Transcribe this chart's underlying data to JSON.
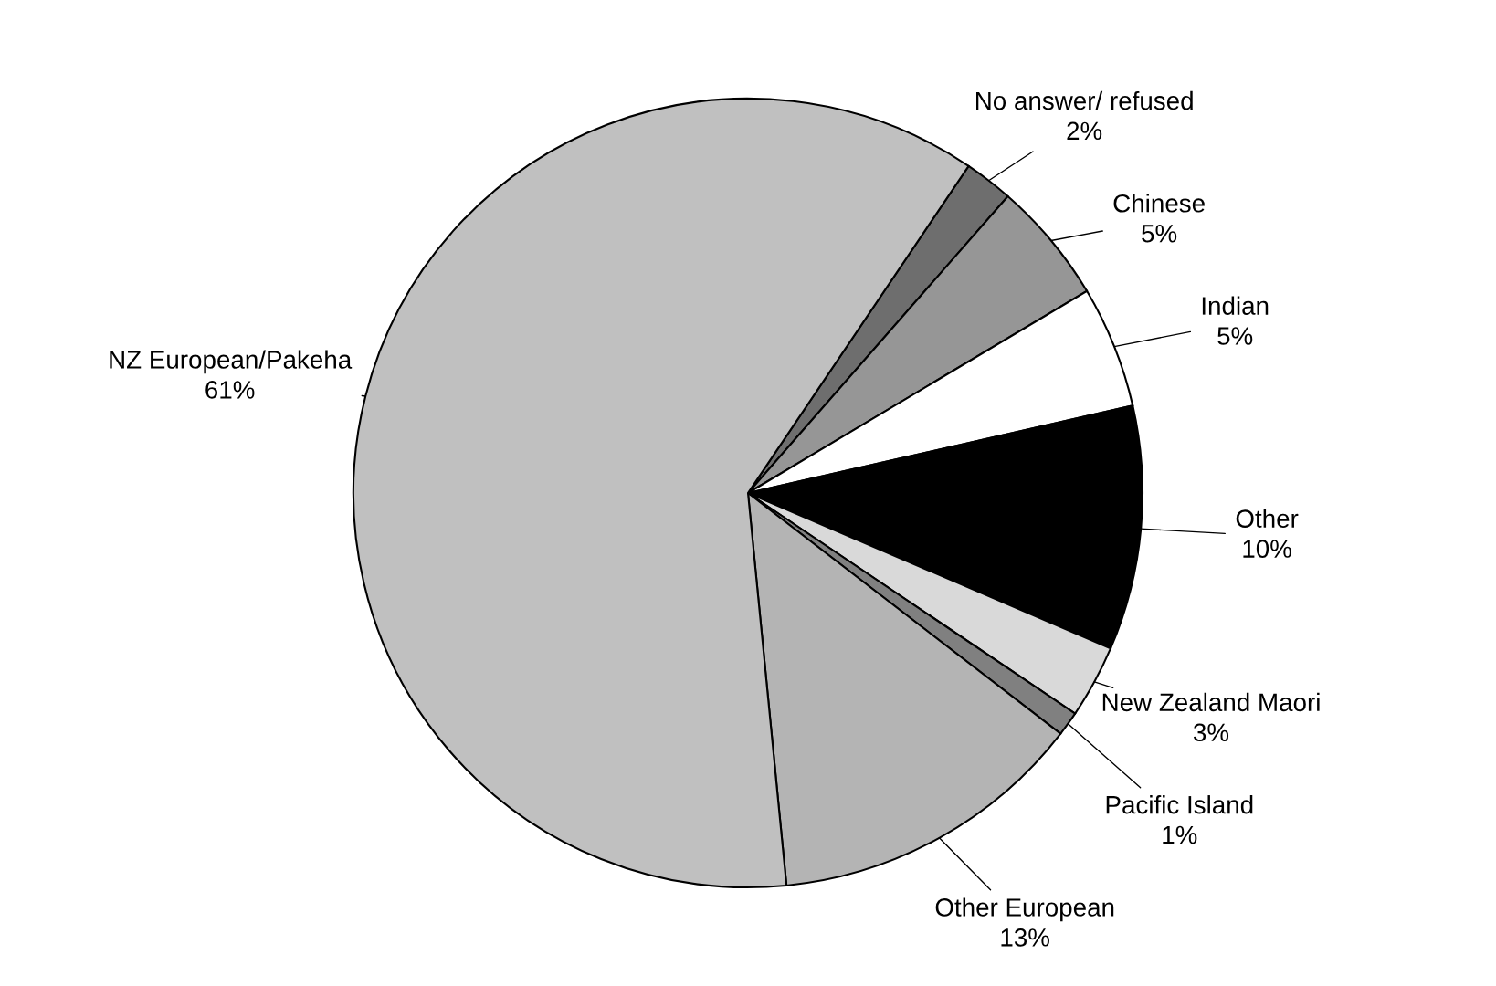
{
  "chart_data": {
    "type": "pie",
    "categories": [
      "No answer/ refused",
      "Chinese",
      "Indian",
      "Other",
      "New Zealand Maori",
      "Pacific Island",
      "Other European",
      "NZ European/Pakeha"
    ],
    "values": [
      2,
      5,
      5,
      10,
      3,
      1,
      13,
      61
    ],
    "colors": [
      "#6e6e6e",
      "#969696",
      "#ffffff",
      "#000000",
      "#d9d9d9",
      "#808080",
      "#b4b4b4",
      "#c0c0c0"
    ],
    "value_labels": [
      "2%",
      "5%",
      "5%",
      "10%",
      "3%",
      "1%",
      "13%",
      "61%"
    ]
  }
}
